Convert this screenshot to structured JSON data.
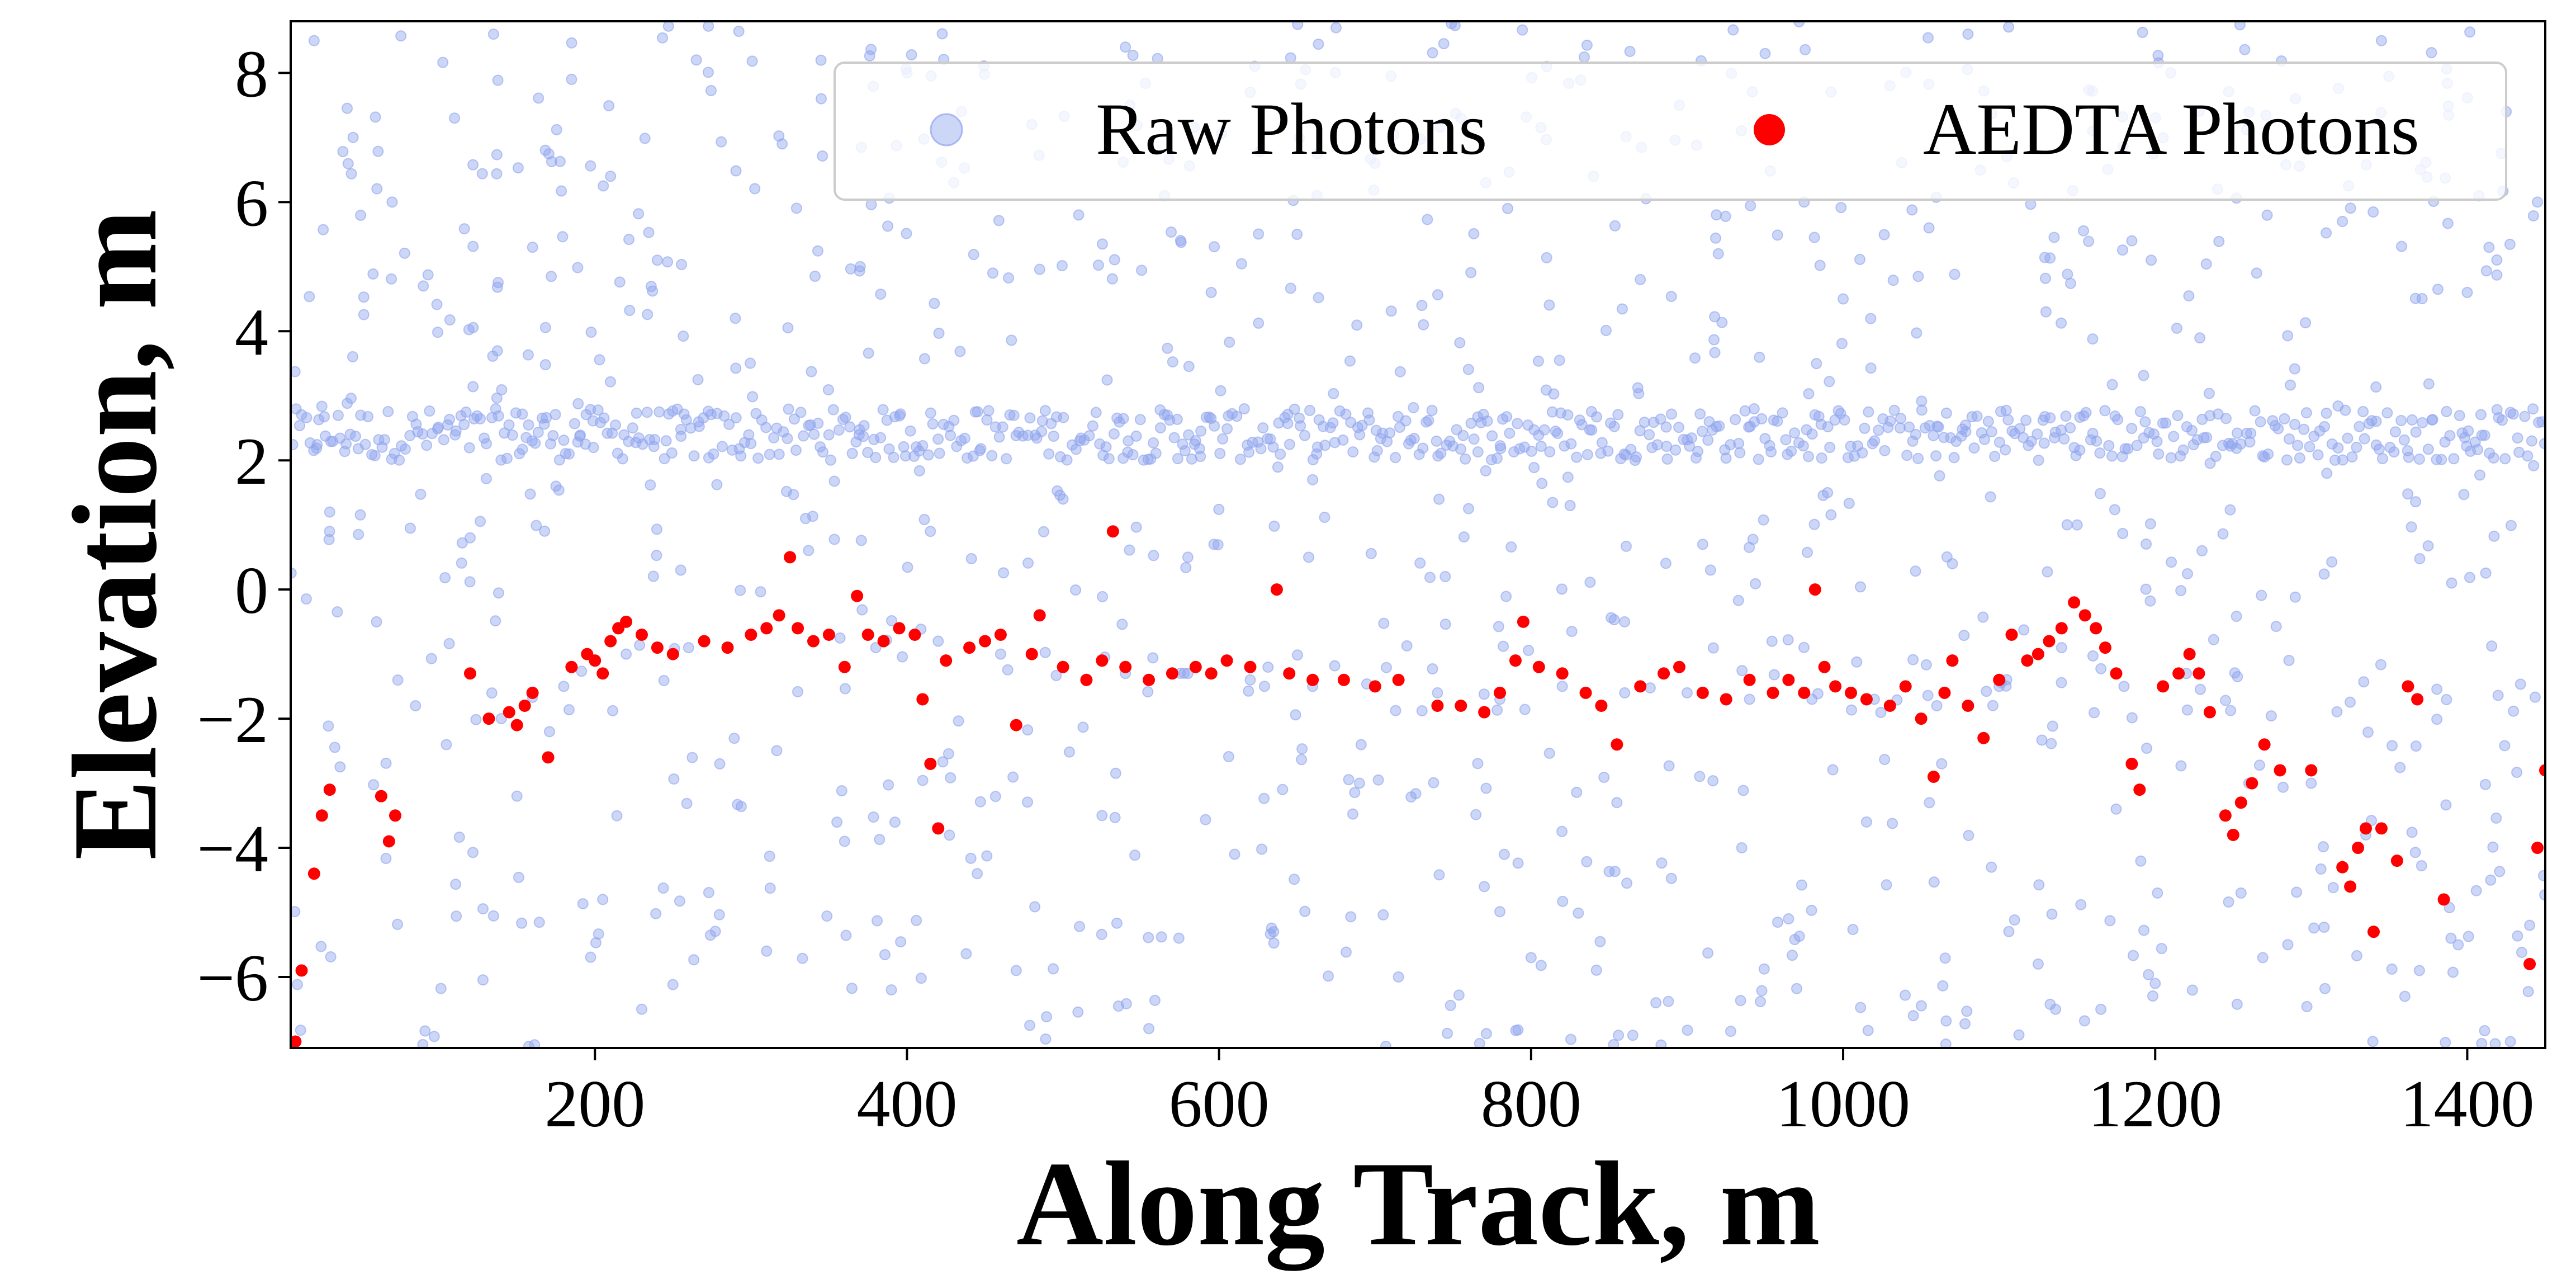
{
  "chart_data": {
    "type": "scatter",
    "title": "",
    "xlabel": "Along Track, m",
    "ylabel": "Elevation, m",
    "xlim": [
      5,
      1450
    ],
    "ylim": [
      -7.1,
      8.8
    ],
    "x_ticks": [
      200,
      400,
      600,
      800,
      1000,
      1200,
      1400
    ],
    "y_ticks": [
      -6,
      -4,
      -2,
      0,
      2,
      4,
      6,
      8
    ],
    "x_tick_labels": [
      "200",
      "400",
      "600",
      "800",
      "1000",
      "1200",
      "1400"
    ],
    "y_tick_labels": [
      "−6",
      "−4",
      "−2",
      "0",
      "2",
      "4",
      "6",
      "8"
    ],
    "grid": false,
    "legend_position": "top-right",
    "legend": {
      "raw_label": "Raw Photons",
      "aedta_label": "AEDTA Photons"
    },
    "series": [
      {
        "name": "Raw Photons",
        "color": "#8fa3ee",
        "opacity": 0.45,
        "description_of_structure": "canopy/noise band near 2.4 m plus ground track and scattered background",
        "band": {
          "x_range": [
            5,
            1450
          ],
          "y_center": 2.4,
          "y_spread": 0.25
        },
        "points": [
          [
            20,
            8.5
          ],
          [
            45,
            7.0
          ],
          [
            70,
            6.0
          ],
          [
            90,
            4.7
          ],
          [
            110,
            7.3
          ],
          [
            135,
            8.6
          ],
          [
            160,
            5.3
          ],
          [
            185,
            7.9
          ],
          [
            210,
            6.4
          ],
          [
            240,
            5.1
          ],
          [
            265,
            8.2
          ],
          [
            290,
            4.2
          ],
          [
            320,
            6.9
          ],
          [
            345,
            7.6
          ],
          [
            370,
            5.0
          ],
          [
            400,
            8.0
          ],
          [
            430,
            6.3
          ],
          [
            455,
            4.9
          ],
          [
            480,
            7.2
          ],
          [
            510,
            5.8
          ],
          [
            540,
            8.4
          ],
          [
            565,
            6.1
          ],
          [
            595,
            4.6
          ],
          [
            620,
            7.7
          ],
          [
            650,
            5.5
          ],
          [
            675,
            8.7
          ],
          [
            700,
            6.6
          ],
          [
            730,
            4.4
          ],
          [
            755,
            7.3
          ],
          [
            785,
            5.9
          ],
          [
            810,
            8.1
          ],
          [
            840,
            6.4
          ],
          [
            870,
            4.8
          ],
          [
            895,
            7.5
          ],
          [
            920,
            5.2
          ],
          [
            950,
            8.3
          ],
          [
            975,
            6.0
          ],
          [
            1000,
            4.5
          ],
          [
            1030,
            7.8
          ],
          [
            1055,
            5.6
          ],
          [
            1080,
            8.6
          ],
          [
            1105,
            6.7
          ],
          [
            1130,
            4.3
          ],
          [
            1160,
            7.1
          ],
          [
            1185,
            5.4
          ],
          [
            1210,
            8.0
          ],
          [
            1240,
            6.2
          ],
          [
            1265,
            4.9
          ],
          [
            1290,
            7.6
          ],
          [
            1320,
            5.7
          ],
          [
            1345,
            8.5
          ],
          [
            1370,
            6.5
          ],
          [
            1400,
            4.6
          ],
          [
            1425,
            7.4
          ],
          [
            1445,
            6.0
          ],
          [
            30,
            1.2
          ],
          [
            60,
            -0.5
          ],
          [
            85,
            -1.8
          ],
          [
            120,
            0.8
          ],
          [
            150,
            -3.2
          ],
          [
            175,
            1.6
          ],
          [
            205,
            -4.8
          ],
          [
            230,
            -6.5
          ],
          [
            255,
            0.3
          ],
          [
            280,
            -2.7
          ],
          [
            310,
            -5.6
          ],
          [
            335,
            1.1
          ],
          [
            360,
            -3.9
          ],
          [
            390,
            -6.2
          ],
          [
            415,
            0.9
          ],
          [
            445,
            -4.4
          ],
          [
            470,
            -5.9
          ],
          [
            500,
            1.4
          ],
          [
            525,
            -3.5
          ],
          [
            555,
            -6.8
          ],
          [
            580,
            0.5
          ],
          [
            610,
            -4.1
          ],
          [
            635,
            -5.3
          ],
          [
            660,
            1.7
          ],
          [
            690,
            -3.0
          ],
          [
            715,
            -6.0
          ],
          [
            745,
            0.2
          ],
          [
            770,
            -4.6
          ],
          [
            800,
            -5.7
          ],
          [
            825,
            1.3
          ],
          [
            855,
            -3.3
          ],
          [
            880,
            -6.4
          ],
          [
            910,
            0.7
          ],
          [
            935,
            -4.0
          ],
          [
            965,
            -5.1
          ],
          [
            990,
            1.5
          ],
          [
            1015,
            -3.6
          ],
          [
            1045,
            -6.6
          ],
          [
            1070,
            0.4
          ],
          [
            1095,
            -4.3
          ],
          [
            1125,
            -5.8
          ],
          [
            1150,
            1.0
          ],
          [
            1175,
            -3.4
          ],
          [
            1200,
            -6.1
          ],
          [
            1230,
            0.6
          ],
          [
            1255,
            -4.7
          ],
          [
            1285,
            -5.5
          ],
          [
            1310,
            1.8
          ],
          [
            1335,
            -3.8
          ],
          [
            1360,
            -6.3
          ],
          [
            1390,
            0.1
          ],
          [
            1415,
            -4.5
          ],
          [
            1440,
            -5.2
          ],
          [
            140,
            -2.0
          ],
          [
            180,
            -1.5
          ],
          [
            220,
            -1.0
          ],
          [
            260,
            -0.9
          ],
          [
            300,
            -0.7
          ],
          [
            340,
            -0.8
          ],
          [
            380,
            -0.9
          ],
          [
            420,
            -0.8
          ],
          [
            460,
            -1.0
          ],
          [
            500,
            -1.2
          ],
          [
            540,
            -1.3
          ],
          [
            580,
            -1.3
          ],
          [
            620,
            -1.4
          ],
          [
            660,
            -1.5
          ],
          [
            700,
            -1.5
          ],
          [
            740,
            -1.6
          ],
          [
            780,
            -1.7
          ],
          [
            820,
            -1.5
          ],
          [
            860,
            -1.6
          ],
          [
            900,
            -1.6
          ],
          [
            940,
            -1.7
          ],
          [
            980,
            -1.7
          ],
          [
            1020,
            -1.7
          ],
          [
            1060,
            -1.8
          ],
          [
            1100,
            -1.5
          ],
          [
            1140,
            -0.9
          ],
          [
            1180,
            -1.5
          ],
          [
            1220,
            -1.3
          ],
          [
            1260,
            -3.0
          ],
          [
            1300,
            -3.0
          ]
        ]
      },
      {
        "name": "AEDTA Photons",
        "color": "#ff0000",
        "opacity": 1.0,
        "points": [
          [
            8,
            -7.0
          ],
          [
            12,
            -5.9
          ],
          [
            20,
            -4.4
          ],
          [
            25,
            -3.5
          ],
          [
            30,
            -3.1
          ],
          [
            63,
            -3.2
          ],
          [
            68,
            -3.9
          ],
          [
            72,
            -3.5
          ],
          [
            120,
            -1.3
          ],
          [
            132,
            -2.0
          ],
          [
            145,
            -1.9
          ],
          [
            150,
            -2.1
          ],
          [
            155,
            -1.8
          ],
          [
            160,
            -1.6
          ],
          [
            170,
            -2.6
          ],
          [
            185,
            -1.2
          ],
          [
            195,
            -1.0
          ],
          [
            200,
            -1.1
          ],
          [
            205,
            -1.3
          ],
          [
            210,
            -0.8
          ],
          [
            215,
            -0.6
          ],
          [
            220,
            -0.5
          ],
          [
            230,
            -0.7
          ],
          [
            240,
            -0.9
          ],
          [
            250,
            -1.0
          ],
          [
            270,
            -0.8
          ],
          [
            285,
            -0.9
          ],
          [
            300,
            -0.7
          ],
          [
            310,
            -0.6
          ],
          [
            318,
            -0.4
          ],
          [
            325,
            0.5
          ],
          [
            330,
            -0.6
          ],
          [
            340,
            -0.8
          ],
          [
            350,
            -0.7
          ],
          [
            360,
            -1.2
          ],
          [
            368,
            -0.1
          ],
          [
            375,
            -0.7
          ],
          [
            385,
            -0.8
          ],
          [
            395,
            -0.6
          ],
          [
            405,
            -0.7
          ],
          [
            410,
            -1.7
          ],
          [
            415,
            -2.7
          ],
          [
            420,
            -3.7
          ],
          [
            425,
            -1.1
          ],
          [
            440,
            -0.9
          ],
          [
            450,
            -0.8
          ],
          [
            460,
            -0.7
          ],
          [
            470,
            -2.1
          ],
          [
            480,
            -1.0
          ],
          [
            485,
            -0.4
          ],
          [
            500,
            -1.2
          ],
          [
            515,
            -1.4
          ],
          [
            525,
            -1.1
          ],
          [
            532,
            0.9
          ],
          [
            540,
            -1.2
          ],
          [
            555,
            -1.4
          ],
          [
            570,
            -1.3
          ],
          [
            585,
            -1.2
          ],
          [
            595,
            -1.3
          ],
          [
            605,
            -1.1
          ],
          [
            620,
            -1.2
          ],
          [
            637,
            0.0
          ],
          [
            645,
            -1.3
          ],
          [
            660,
            -1.4
          ],
          [
            680,
            -1.4
          ],
          [
            700,
            -1.5
          ],
          [
            715,
            -1.4
          ],
          [
            740,
            -1.8
          ],
          [
            755,
            -1.8
          ],
          [
            770,
            -1.9
          ],
          [
            780,
            -1.6
          ],
          [
            790,
            -1.1
          ],
          [
            795,
            -0.5
          ],
          [
            805,
            -1.2
          ],
          [
            820,
            -1.3
          ],
          [
            835,
            -1.6
          ],
          [
            845,
            -1.8
          ],
          [
            855,
            -2.4
          ],
          [
            870,
            -1.5
          ],
          [
            885,
            -1.3
          ],
          [
            895,
            -1.2
          ],
          [
            910,
            -1.6
          ],
          [
            925,
            -1.7
          ],
          [
            940,
            -1.4
          ],
          [
            955,
            -1.6
          ],
          [
            965,
            -1.4
          ],
          [
            975,
            -1.6
          ],
          [
            982,
            0.0
          ],
          [
            988,
            -1.2
          ],
          [
            995,
            -1.5
          ],
          [
            1005,
            -1.6
          ],
          [
            1015,
            -1.7
          ],
          [
            1030,
            -1.8
          ],
          [
            1040,
            -1.5
          ],
          [
            1050,
            -2.0
          ],
          [
            1058,
            -2.9
          ],
          [
            1065,
            -1.6
          ],
          [
            1070,
            -1.1
          ],
          [
            1080,
            -1.8
          ],
          [
            1090,
            -2.3
          ],
          [
            1100,
            -1.4
          ],
          [
            1108,
            -0.7
          ],
          [
            1118,
            -1.1
          ],
          [
            1125,
            -1.0
          ],
          [
            1132,
            -0.8
          ],
          [
            1140,
            -0.6
          ],
          [
            1148,
            -0.2
          ],
          [
            1155,
            -0.4
          ],
          [
            1162,
            -0.6
          ],
          [
            1168,
            -0.9
          ],
          [
            1175,
            -1.3
          ],
          [
            1185,
            -2.7
          ],
          [
            1190,
            -3.1
          ],
          [
            1205,
            -1.5
          ],
          [
            1215,
            -1.3
          ],
          [
            1222,
            -1.0
          ],
          [
            1228,
            -1.3
          ],
          [
            1235,
            -1.9
          ],
          [
            1245,
            -3.5
          ],
          [
            1250,
            -3.8
          ],
          [
            1255,
            -3.3
          ],
          [
            1262,
            -3.0
          ],
          [
            1270,
            -2.4
          ],
          [
            1280,
            -2.8
          ],
          [
            1300,
            -2.8
          ],
          [
            1320,
            -4.3
          ],
          [
            1325,
            -4.6
          ],
          [
            1330,
            -4.0
          ],
          [
            1335,
            -3.7
          ],
          [
            1340,
            -5.3
          ],
          [
            1345,
            -3.7
          ],
          [
            1355,
            -4.2
          ],
          [
            1362,
            -1.5
          ],
          [
            1368,
            -1.7
          ],
          [
            1385,
            -4.8
          ],
          [
            1440,
            -5.8
          ],
          [
            1445,
            -4.0
          ],
          [
            1450,
            -2.8
          ]
        ]
      }
    ]
  }
}
